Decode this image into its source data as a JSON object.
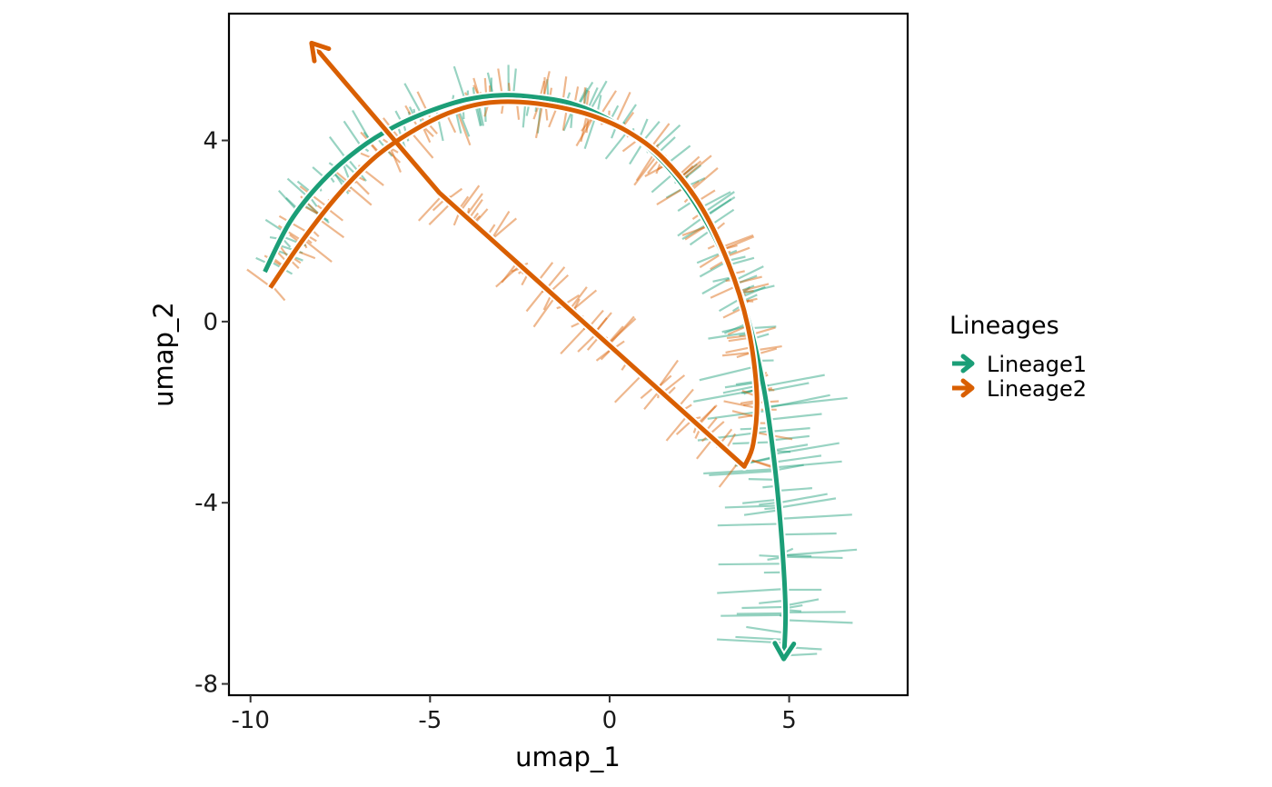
{
  "chart_data": {
    "type": "line",
    "title": "",
    "xlabel": "umap_1",
    "ylabel": "umap_2",
    "xlim": [
      -10.6,
      8.3
    ],
    "ylim": [
      -8.25,
      6.8
    ],
    "x_ticks": [
      -10,
      -5,
      0,
      5
    ],
    "y_ticks": [
      4,
      0,
      -4,
      -8
    ],
    "x_tick_labels": [
      "-10",
      "-5",
      "0",
      "5"
    ],
    "y_tick_labels": [
      "4",
      "0",
      "-4",
      "-8"
    ],
    "grid": false,
    "legend": {
      "title": "Lineages",
      "position": "right"
    },
    "series": [
      {
        "name": "Lineage1",
        "color": "#1B9E77",
        "x": [
          -9.6,
          -8.9,
          -8.0,
          -7.0,
          -6.0,
          -5.0,
          -4.0,
          -3.0,
          -2.0,
          -1.0,
          0.0,
          1.0,
          2.0,
          3.0,
          3.8,
          4.3,
          4.6,
          4.8,
          4.9,
          4.85
        ],
        "y": [
          1.1,
          2.2,
          3.1,
          3.8,
          4.3,
          4.65,
          4.9,
          5.0,
          4.95,
          4.8,
          4.45,
          3.9,
          3.05,
          1.75,
          0.2,
          -1.5,
          -3.2,
          -4.9,
          -6.4,
          -7.45
        ]
      },
      {
        "name": "Lineage2",
        "color": "#D95F02",
        "x": [
          -9.45,
          -8.5,
          -7.5,
          -6.5,
          -5.5,
          -4.5,
          -3.5,
          -2.5,
          -1.5,
          -0.5,
          0.5,
          1.5,
          2.5,
          3.3,
          3.85,
          4.1,
          4.0,
          3.75,
          -4.75,
          -8.3
        ],
        "y": [
          0.75,
          1.85,
          2.85,
          3.65,
          4.2,
          4.6,
          4.82,
          4.85,
          4.75,
          4.55,
          4.2,
          3.6,
          2.6,
          1.3,
          -0.1,
          -1.6,
          -2.7,
          -3.2,
          2.85,
          6.15
        ]
      }
    ]
  }
}
